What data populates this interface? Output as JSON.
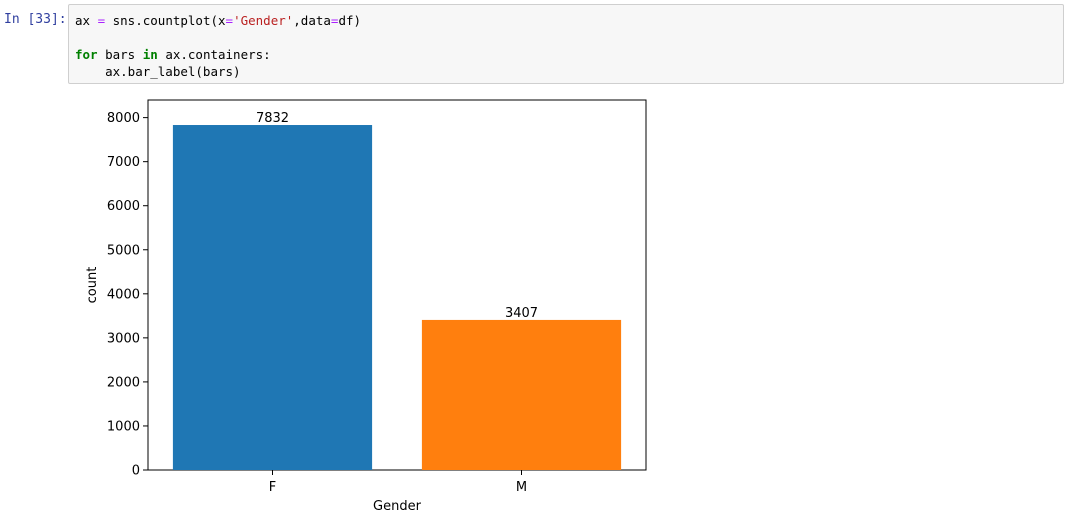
{
  "prompt_label": "In [33]:",
  "code_lines": [
    [
      {
        "t": "ax ",
        "c": ""
      },
      {
        "t": "=",
        "c": "op"
      },
      {
        "t": " sns.countplot(x",
        "c": ""
      },
      {
        "t": "=",
        "c": "op"
      },
      {
        "t": "'Gender'",
        "c": "str"
      },
      {
        "t": ",data",
        "c": ""
      },
      {
        "t": "=",
        "c": "op"
      },
      {
        "t": "df)",
        "c": ""
      }
    ],
    [],
    [
      {
        "t": "for",
        "c": "kw"
      },
      {
        "t": " bars ",
        "c": ""
      },
      {
        "t": "in",
        "c": "kw"
      },
      {
        "t": " ax.containers:",
        "c": ""
      }
    ],
    [
      {
        "t": "    ax.bar_label(bars)",
        "c": ""
      }
    ]
  ],
  "chart_data": {
    "type": "bar",
    "categories": [
      "F",
      "M"
    ],
    "values": [
      7832,
      3407
    ],
    "bar_labels": [
      "7832",
      "3407"
    ],
    "colors": [
      "#1f77b4",
      "#ff7f0e"
    ],
    "xlabel": "Gender",
    "ylabel": "count",
    "ylim": [
      0,
      8400
    ],
    "yticks": [
      0,
      1000,
      2000,
      3000,
      4000,
      5000,
      6000,
      7000,
      8000
    ],
    "grid": false
  }
}
